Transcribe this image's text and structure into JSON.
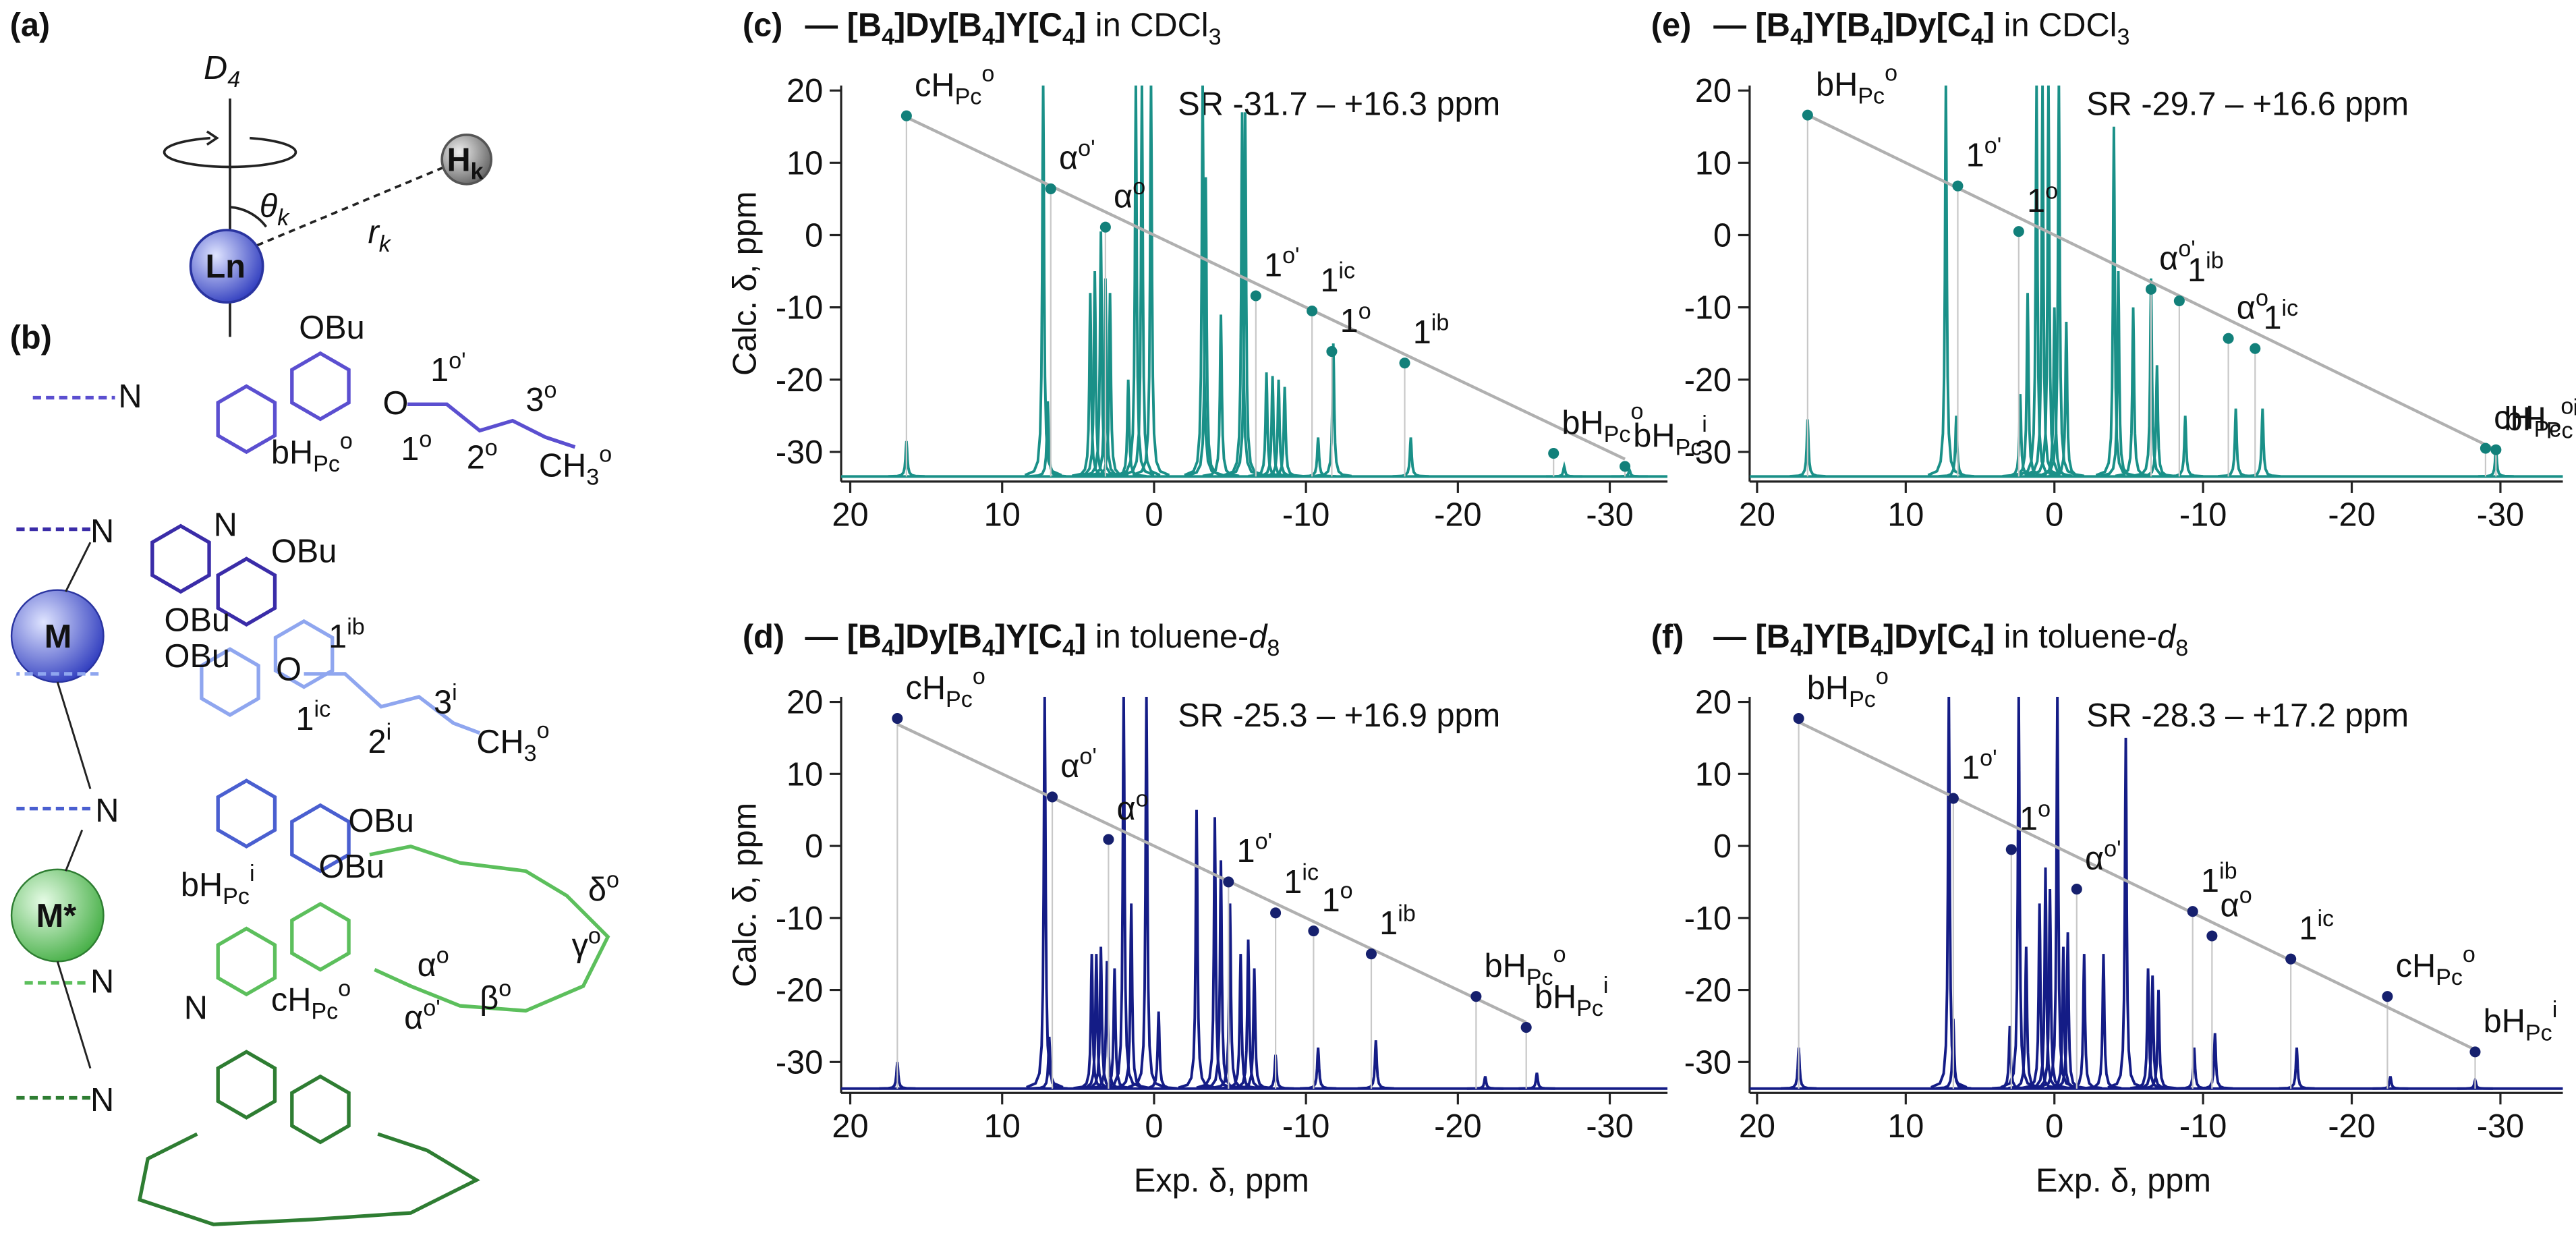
{
  "panels": {
    "a": {
      "label": "(a)",
      "axis": {
        "text": "D",
        "sub": "4"
      },
      "atom": {
        "text": "H",
        "sub": "k"
      },
      "angle": {
        "text": "θ",
        "sub": "k"
      },
      "distance": {
        "text": "r",
        "sub": "k"
      },
      "metal": {
        "text": "Ln"
      }
    },
    "b": {
      "label": "(b)",
      "labels": [
        {
          "text": "N",
          "color": "#5b4fd0"
        },
        {
          "text": "OBu",
          "color": "#3a2ca8"
        },
        {
          "text": "O",
          "color": "#5b4fd0"
        },
        {
          "text": "1",
          "sup": "o'",
          "color": "#222"
        },
        {
          "text": "1",
          "sup": "o",
          "color": "#222"
        },
        {
          "text": "2",
          "sup": "o",
          "color": "#999"
        },
        {
          "text": "3",
          "sup": "o",
          "color": "#999"
        },
        {
          "text": "CH",
          "sub": "3",
          "sup": "o",
          "color": "#999"
        },
        {
          "text": "bH",
          "sub": "Pc",
          "sup": "o",
          "color": "#222"
        },
        {
          "text": "N",
          "color": "#3a2ca8"
        },
        {
          "text": "N",
          "color": "#3a2ca8"
        },
        {
          "text": "OBu",
          "color": "#3a2ca8"
        },
        {
          "text": "OBu",
          "color": "#3a2ca8"
        },
        {
          "text": "M",
          "color": "#3a2ca8"
        },
        {
          "text": "OBu",
          "color": "#8fa6ef"
        },
        {
          "text": "O",
          "color": "#8fa6ef"
        },
        {
          "text": "1",
          "sup": "ib",
          "color": "#222"
        },
        {
          "text": "1",
          "sup": "ic",
          "color": "#222"
        },
        {
          "text": "2",
          "sup": "i",
          "color": "#999"
        },
        {
          "text": "3",
          "sup": "i",
          "color": "#999"
        },
        {
          "text": "CH",
          "sub": "3",
          "sup": "o",
          "color": "#999"
        },
        {
          "text": "N",
          "color": "#4a5fd0"
        },
        {
          "text": "OBu",
          "color": "#4a5fd0"
        },
        {
          "text": "OBu",
          "color": "#4a5fd0"
        },
        {
          "text": "bH",
          "sub": "Pc",
          "sup": "i",
          "color": "#222"
        },
        {
          "text": "M*",
          "color": "#2e7d32"
        },
        {
          "text": "α",
          "sup": "o",
          "color": "#222"
        },
        {
          "text": "α",
          "sup": "o'",
          "color": "#222"
        },
        {
          "text": "β",
          "sup": "o",
          "color": "#999"
        },
        {
          "text": "γ",
          "sup": "o",
          "color": "#999"
        },
        {
          "text": "δ",
          "sup": "o",
          "color": "#999"
        },
        {
          "text": "cH",
          "sub": "Pc",
          "sup": "o",
          "color": "#222"
        },
        {
          "text": "N",
          "color": "#5cbf5c"
        },
        {
          "text": "N",
          "color": "#2e7d32"
        },
        {
          "text": "N",
          "color": "#2e7d32"
        }
      ]
    }
  },
  "chart_data": [
    {
      "type": "scatter",
      "panel_label": "(c)",
      "title": "— [B4]Dy[B4]Y[C4]",
      "solvent": "in CDCl3",
      "annotation": "SR -31.7 – +16.3 ppm",
      "ylabel": "Calc. δ, ppm",
      "xlim": [
        20.6,
        -33.8
      ],
      "xticks": [
        20,
        10,
        0,
        -10,
        -20,
        -30
      ],
      "ylim": [
        -34.1,
        20.7
      ],
      "yticks": [
        20,
        10,
        0,
        -10,
        -20,
        -30
      ],
      "series": [
        {
          "color": "#12807a",
          "x": [
            16.3,
            6.8,
            3.2,
            -6.7,
            -10.4,
            -11.7,
            -16.5,
            -26.3,
            -31.0
          ],
          "values": [
            16.5,
            6.4,
            1.1,
            -8.4,
            -10.5,
            -16.1,
            -17.7,
            -30.2,
            -32.0
          ],
          "labels": [
            {
              "text": "cH",
              "sub": "Pc",
              "sup": "o"
            },
            {
              "text": "α",
              "sup": "o'"
            },
            {
              "text": "α",
              "sup": "o"
            },
            {
              "text": "1",
              "sup": "o'"
            },
            {
              "text": "1",
              "sup": "ic"
            },
            {
              "text": "1",
              "sup": "o"
            },
            {
              "text": "1",
              "sup": "ib"
            },
            {
              "text": "bH",
              "sub": "Pc",
              "sup": "o"
            },
            {
              "text": "bH",
              "sub": "Pc",
              "sup": "i"
            }
          ]
        }
      ],
      "spectrum": {
        "color": "#1a9088",
        "baseline": -33.4,
        "x": [
          16.3,
          7.3,
          7.0,
          4.2,
          3.9,
          3.5,
          3.2,
          2.9,
          1.7,
          1.2,
          0.8,
          0.2,
          -3.2,
          -3.4,
          -4.4,
          -5.8,
          -6.0,
          -7.4,
          -7.8,
          -8.2,
          -8.6,
          -10.8,
          -11.8,
          -16.9,
          -27.0,
          -31.3
        ],
        "values": [
          -28.5,
          21,
          -23,
          -8,
          -5,
          0.5,
          -6,
          -8,
          -20,
          21,
          21,
          21,
          21,
          8,
          -11,
          17,
          17,
          -19,
          -19.5,
          -20,
          -21,
          -28,
          -15,
          -28,
          -32,
          -32.5
        ]
      }
    },
    {
      "type": "scatter",
      "panel_label": "(d)",
      "title": "— [B4]Dy[B4]Y[C4]",
      "solvent": "in toluene-d8",
      "annotation": "SR -25.3 – +16.9 ppm",
      "ylabel": "Calc. δ, ppm",
      "xlabel": "Exp. δ, ppm",
      "xlim": [
        20.6,
        -33.8
      ],
      "xticks": [
        20,
        10,
        0,
        -10,
        -20,
        -30
      ],
      "ylim": [
        -34.3,
        20.7
      ],
      "yticks": [
        20,
        10,
        0,
        -10,
        -20,
        -30
      ],
      "series": [
        {
          "color": "#16206e",
          "x": [
            16.9,
            6.7,
            3.0,
            -4.9,
            -8.0,
            -10.5,
            -14.3,
            -21.2,
            -24.5
          ],
          "values": [
            17.7,
            6.8,
            0.9,
            -5.0,
            -9.3,
            -11.8,
            -15.0,
            -20.9,
            -25.2
          ],
          "labels": [
            {
              "text": "cH",
              "sub": "Pc",
              "sup": "o"
            },
            {
              "text": "α",
              "sup": "o'"
            },
            {
              "text": "α",
              "sup": "o"
            },
            {
              "text": "1",
              "sup": "o'"
            },
            {
              "text": "1",
              "sup": "ic"
            },
            {
              "text": "1",
              "sup": "o"
            },
            {
              "text": "1",
              "sup": "ib"
            },
            {
              "text": "bH",
              "sub": "Pc",
              "sup": "o"
            },
            {
              "text": "bH",
              "sub": "Pc",
              "sup": "i"
            }
          ]
        }
      ],
      "spectrum": {
        "color": "#141c86",
        "baseline": -33.7,
        "x": [
          16.9,
          7.2,
          6.9,
          4.1,
          3.8,
          3.5,
          3.1,
          2.6,
          2.0,
          1.5,
          0.5,
          -0.3,
          -2.8,
          -4.0,
          -4.4,
          -5.0,
          -5.7,
          -6.2,
          -6.6,
          -8.0,
          -10.8,
          -14.6,
          -21.8,
          -25.2
        ],
        "values": [
          -30,
          21,
          -26.5,
          -15,
          -15,
          -14,
          -16,
          -17,
          21,
          -8,
          21,
          -23,
          5,
          4,
          -2,
          -8,
          -15,
          -13,
          -17,
          -29,
          -28,
          -27,
          -32,
          -31.5
        ]
      }
    },
    {
      "type": "scatter",
      "panel_label": "(e)",
      "title": "— [B4]Y[B4]Dy[C4]",
      "solvent": "in CDCl3",
      "annotation": "SR -29.7 – +16.6 ppm",
      "xlim": [
        20.5,
        -34.2
      ],
      "xticks": [
        20,
        10,
        0,
        -10,
        -20,
        -30
      ],
      "ylim": [
        -34.1,
        20.7
      ],
      "yticks": [
        20,
        10,
        0,
        -10,
        -20,
        -30
      ],
      "series": [
        {
          "color": "#12807a",
          "x": [
            16.6,
            6.5,
            2.4,
            -6.5,
            -8.4,
            -11.7,
            -13.5,
            -29.0,
            -29.7
          ],
          "values": [
            16.6,
            6.8,
            0.5,
            -7.5,
            -9.1,
            -14.3,
            -15.7,
            -29.5,
            -29.7
          ],
          "labels": [
            {
              "text": "bH",
              "sub": "Pc",
              "sup": "o"
            },
            {
              "text": "1",
              "sup": "o'"
            },
            {
              "text": "1",
              "sup": "o"
            },
            {
              "text": "α",
              "sup": "o'"
            },
            {
              "text": "1",
              "sup": "ib"
            },
            {
              "text": "α",
              "sup": "o"
            },
            {
              "text": "1",
              "sup": "ic"
            },
            {
              "text": "cH",
              "sub": "Pc",
              "sup": "o"
            },
            {
              "text": "bH",
              "sub": "Pc",
              "sup": "i"
            }
          ]
        }
      ],
      "spectrum": {
        "color": "#1a9088",
        "baseline": -33.4,
        "x": [
          16.6,
          7.3,
          6.6,
          2.3,
          1.8,
          1.2,
          0.8,
          0.4,
          0.0,
          -0.3,
          -0.8,
          -4.0,
          -4.3,
          -5.3,
          -6.5,
          -6.9,
          -8.8,
          -12.2,
          -14.0,
          -29.7
        ],
        "values": [
          -25.5,
          21,
          -25,
          -22,
          -8,
          21,
          21,
          21,
          -10,
          21,
          -12,
          15,
          -5,
          -10,
          -6,
          -18,
          -25,
          -24,
          -24,
          -29.5
        ]
      }
    },
    {
      "type": "scatter",
      "panel_label": "(f)",
      "title": "— [B4]Y[B4]Dy[C4]",
      "solvent": "in toluene-d8",
      "annotation": "SR -28.3 – +17.2 ppm",
      "xlabel": "Exp. δ, ppm",
      "xlim": [
        20.5,
        -34.2
      ],
      "xticks": [
        20,
        10,
        0,
        -10,
        -20,
        -30
      ],
      "ylim": [
        -34.3,
        20.7
      ],
      "yticks": [
        20,
        10,
        0,
        -10,
        -20,
        -30
      ],
      "series": [
        {
          "color": "#16206e",
          "x": [
            17.2,
            6.8,
            2.9,
            -1.5,
            -9.3,
            -10.6,
            -15.9,
            -22.4,
            -28.3
          ],
          "values": [
            17.7,
            6.6,
            -0.5,
            -6.0,
            -9.1,
            -12.5,
            -15.7,
            -20.9,
            -28.6
          ],
          "labels": [
            {
              "text": "bH",
              "sub": "Pc",
              "sup": "o"
            },
            {
              "text": "1",
              "sup": "o'"
            },
            {
              "text": "1",
              "sup": "o"
            },
            {
              "text": "α",
              "sup": "o'"
            },
            {
              "text": "1",
              "sup": "ib"
            },
            {
              "text": "α",
              "sup": "o"
            },
            {
              "text": "1",
              "sup": "ic"
            },
            {
              "text": "cH",
              "sub": "Pc",
              "sup": "o"
            },
            {
              "text": "bH",
              "sub": "Pc",
              "sup": "i"
            }
          ]
        }
      ],
      "spectrum": {
        "color": "#141c86",
        "baseline": -33.7,
        "x": [
          17.2,
          7.1,
          6.8,
          3.0,
          2.4,
          1.9,
          1.0,
          0.6,
          0.3,
          -0.2,
          -0.6,
          -0.9,
          -2.0,
          -3.3,
          -4.8,
          -6.3,
          -6.6,
          -7.0,
          -9.4,
          -10.8,
          -16.3,
          -22.6,
          -28.3
        ],
        "values": [
          -28,
          21,
          -24,
          -25,
          21,
          -14,
          -8,
          -3,
          -6,
          21,
          -14,
          -12,
          -15,
          -15,
          15,
          -17,
          -18,
          -20,
          -28,
          -26,
          -28,
          -32,
          -32.5
        ]
      }
    }
  ]
}
